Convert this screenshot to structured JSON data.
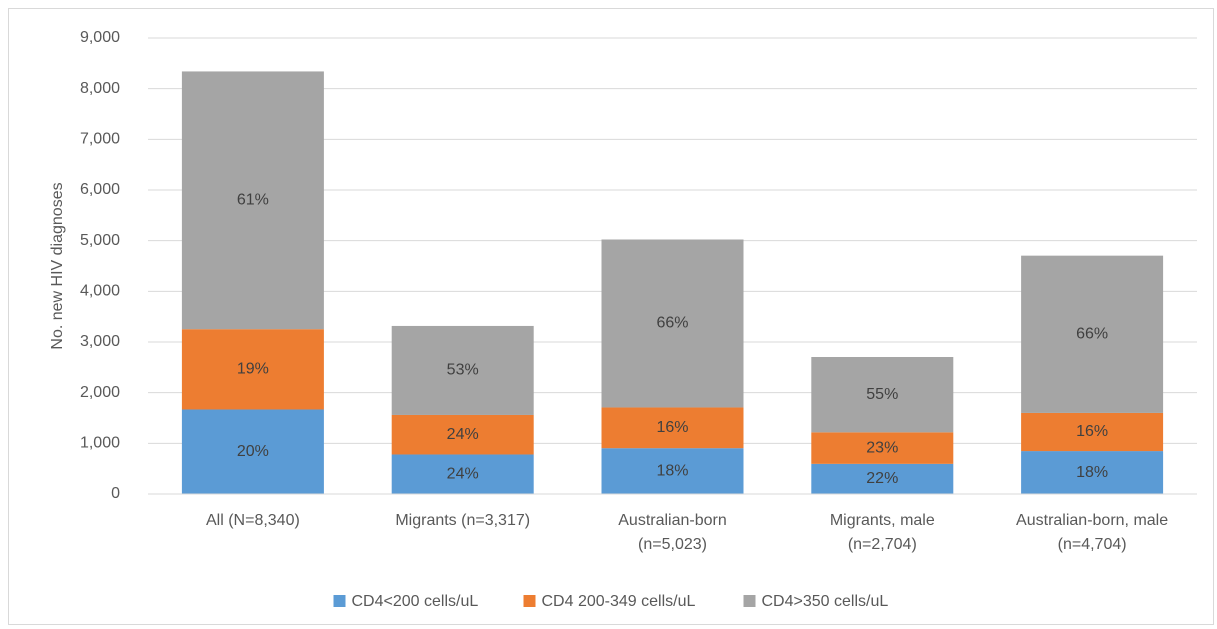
{
  "chart_data": {
    "type": "stacked-bar",
    "y_label": "No. new HIV diagnoses",
    "categories": [
      "All (N=8,340)",
      "Migrants (n=3,317)",
      "Australian-born (n=5,023)",
      "Migrants, male (n=2,704)",
      "Australian-born, male (n=4,704)"
    ],
    "series": [
      {
        "name": "CD4<200 cells/uL",
        "color": "#5b9bd5",
        "values": [
          1668,
          780,
          904,
          595,
          847
        ],
        "value_labels": [
          "20%",
          "24%",
          "18%",
          "22%",
          "18%"
        ]
      },
      {
        "name": "CD4 200-349 cells/uL",
        "color": "#ed7d31",
        "values": [
          1585,
          780,
          804,
          622,
          753
        ],
        "value_labels": [
          "19%",
          "24%",
          "16%",
          "23%",
          "16%"
        ]
      },
      {
        "name": "CD4>350 cells/uL",
        "color": "#a5a5a5",
        "values": [
          5087,
          1757,
          3315,
          1487,
          3104
        ],
        "value_labels": [
          "61%",
          "53%",
          "66%",
          "55%",
          "66%"
        ]
      }
    ],
    "ylim": [
      0,
      9000
    ],
    "yticks": [
      0,
      {
        "value": 1000,
        "label": "1,000"
      },
      {
        "value": 2000,
        "label": "2,000"
      },
      {
        "value": 3000,
        "label": "3,000"
      },
      {
        "value": 4000,
        "label": "4,000"
      },
      {
        "value": 5000,
        "label": "5,000"
      },
      {
        "value": 6000,
        "label": "6,000"
      },
      {
        "value": 7000,
        "label": "7,000"
      },
      {
        "value": 8000,
        "label": "8,000"
      },
      {
        "value": 9000,
        "label": "9,000"
      }
    ],
    "grid": true,
    "legend": "bottom"
  }
}
